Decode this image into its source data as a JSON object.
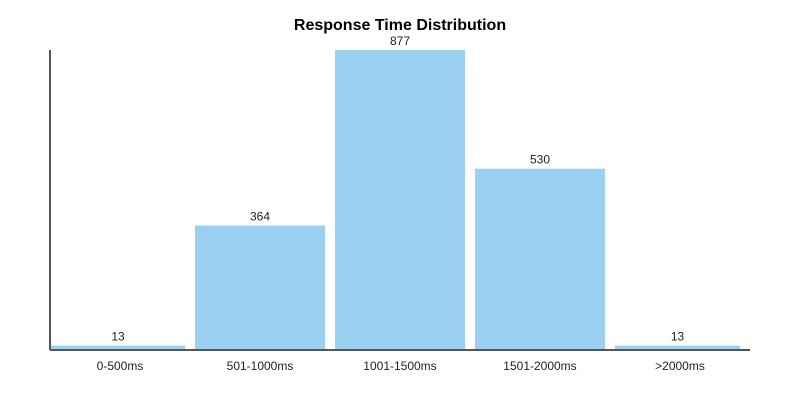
{
  "chart_data": {
    "type": "bar",
    "title": "Response Time Distribution",
    "xlabel": "",
    "ylabel": "",
    "categories": [
      "0-500ms",
      "501-1000ms",
      "1001-1500ms",
      "1501-2000ms",
      ">2000ms"
    ],
    "values": [
      13,
      364,
      877,
      530,
      13
    ],
    "ylim": [
      0,
      877
    ],
    "grid": false,
    "legend": "none",
    "bar_color": "#9BD0F3",
    "axis_color": "#555555"
  }
}
